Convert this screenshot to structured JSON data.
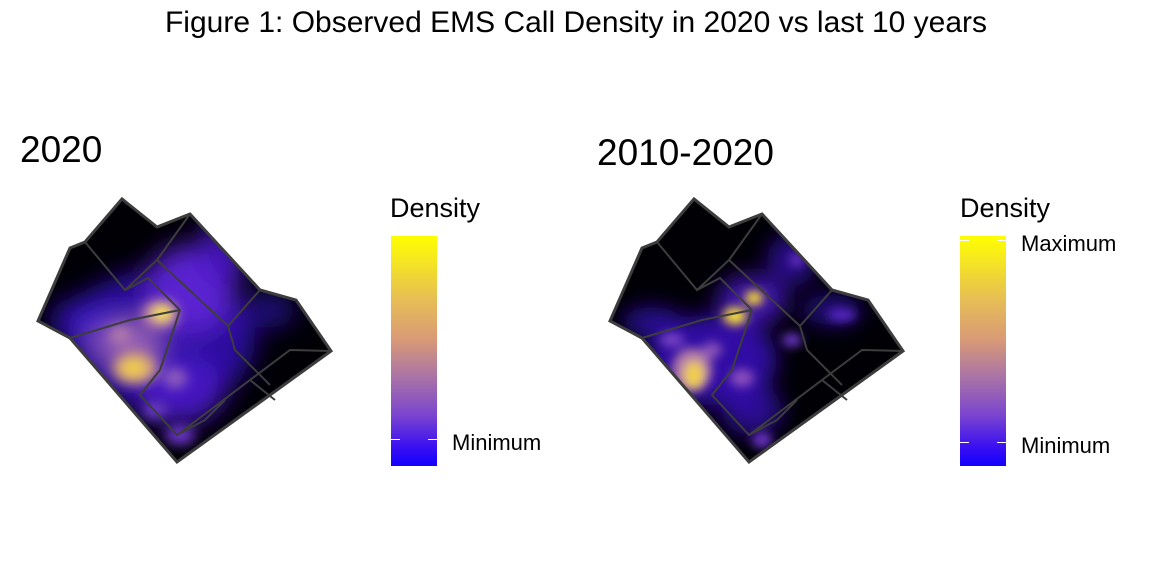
{
  "figure": {
    "title": "Figure 1: Observed EMS Call Density in 2020 vs last 10 years"
  },
  "panels": [
    {
      "title": "2020",
      "legend": {
        "title": "Density",
        "labels": [
          "Minimum"
        ]
      }
    },
    {
      "title": "2010-2020",
      "legend": {
        "title": "Density",
        "labels": [
          "Maximum",
          "Minimum"
        ]
      }
    }
  ],
  "colors": {
    "scale_high": "#ffff00",
    "scale_mid": "#d99a76",
    "scale_low": "#1100ff",
    "background_zero": "#000000",
    "boundary": "#3a3a3a"
  }
}
